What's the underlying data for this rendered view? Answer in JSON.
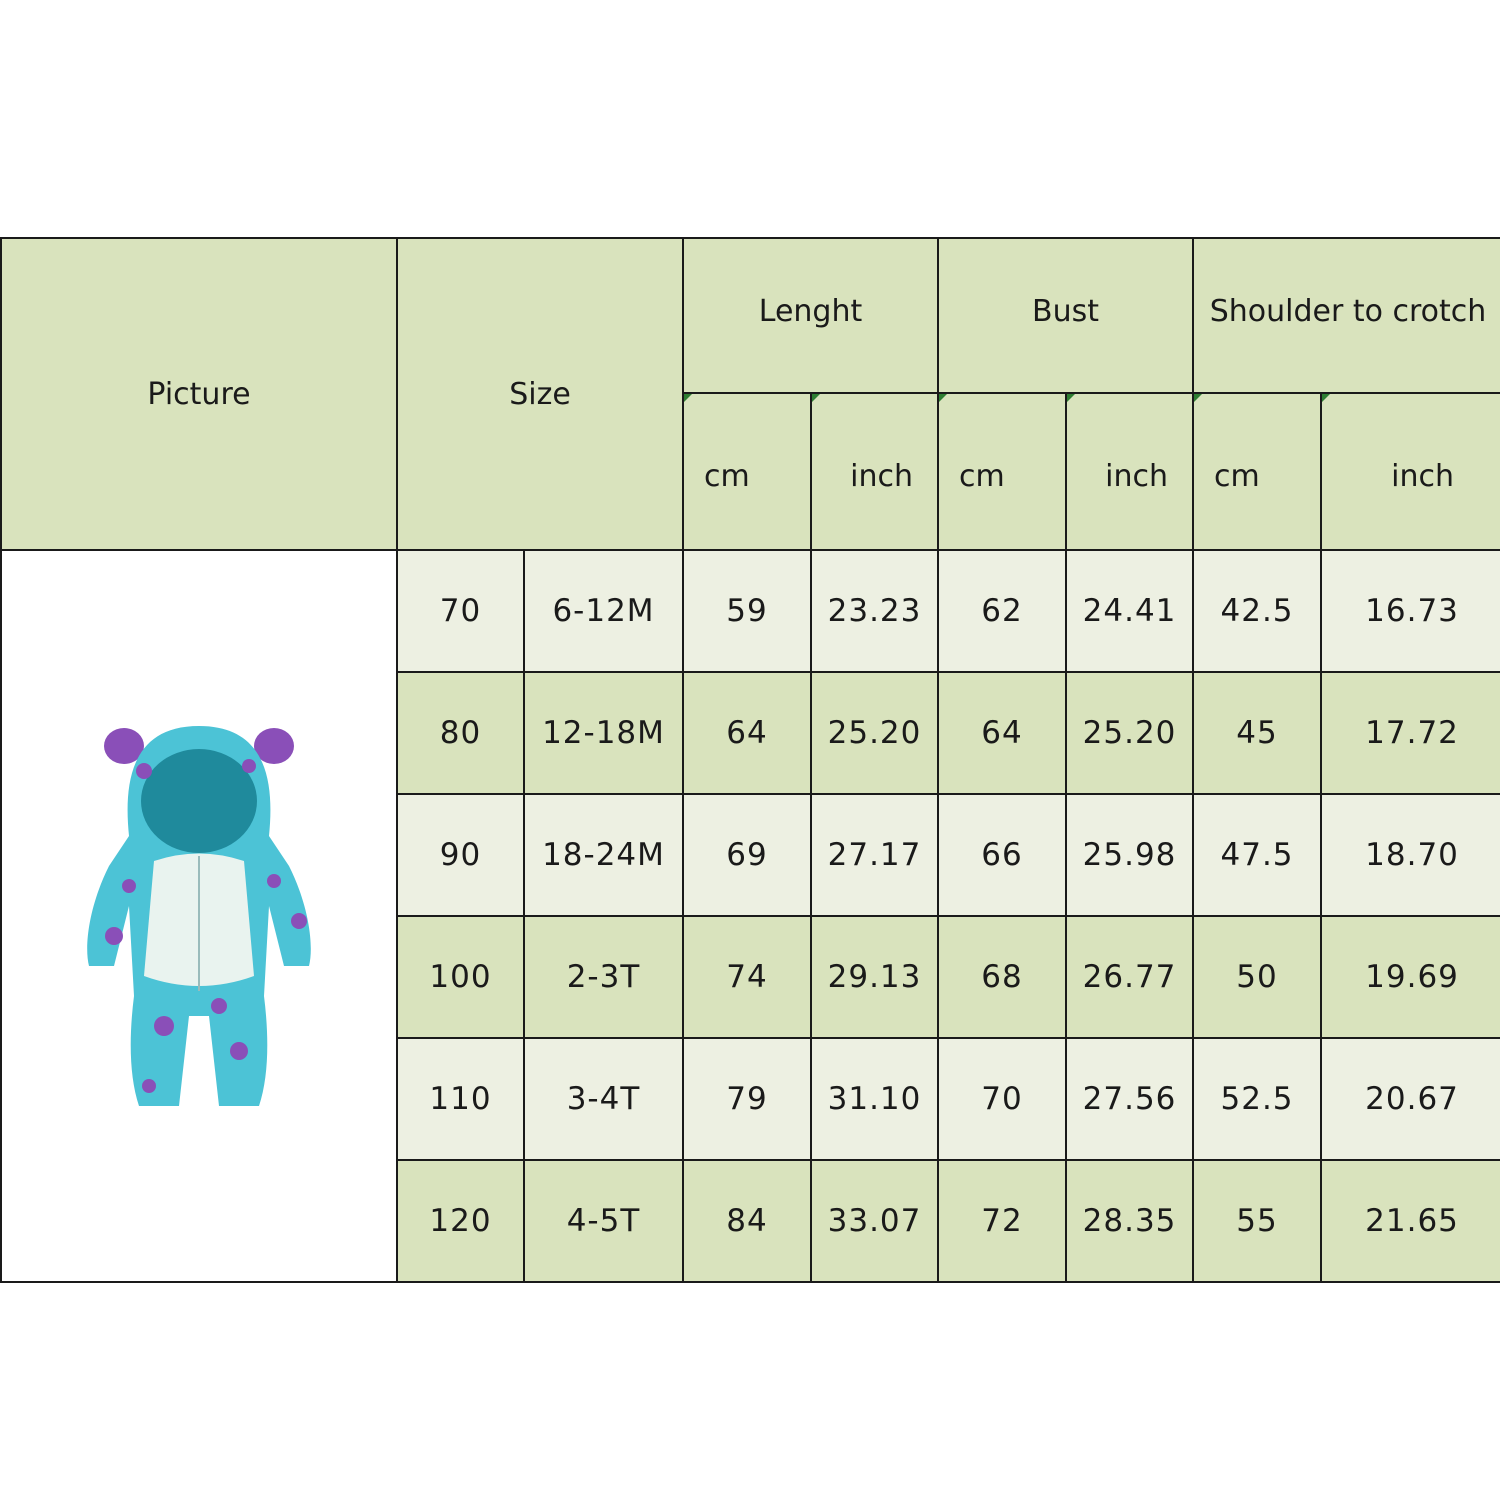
{
  "header": {
    "picture": "Picture",
    "size": "Size",
    "length": "Lenght",
    "bust": "Bust",
    "shoulder_to_crotch": "Shoulder to crotch",
    "units": [
      "cm",
      "inch",
      "cm",
      "inch",
      "cm",
      "inch"
    ]
  },
  "rows": [
    {
      "size": "70",
      "age": "6-12M",
      "length_cm": "59",
      "length_in": "23.23",
      "bust_cm": "62",
      "bust_in": "24.41",
      "stc_cm": "42.5",
      "stc_in": "16.73"
    },
    {
      "size": "80",
      "age": "12-18M",
      "length_cm": "64",
      "length_in": "25.20",
      "bust_cm": "64",
      "bust_in": "25.20",
      "stc_cm": "45",
      "stc_in": "17.72"
    },
    {
      "size": "90",
      "age": "18-24M",
      "length_cm": "69",
      "length_in": "27.17",
      "bust_cm": "66",
      "bust_in": "25.98",
      "stc_cm": "47.5",
      "stc_in": "18.70"
    },
    {
      "size": "100",
      "age": "2-3T",
      "length_cm": "74",
      "length_in": "29.13",
      "bust_cm": "68",
      "bust_in": "26.77",
      "stc_cm": "50",
      "stc_in": "19.69"
    },
    {
      "size": "110",
      "age": "3-4T",
      "length_cm": "79",
      "length_in": "31.10",
      "bust_cm": "70",
      "bust_in": "27.56",
      "stc_cm": "52.5",
      "stc_in": "20.67"
    },
    {
      "size": "120",
      "age": "4-5T",
      "length_cm": "84",
      "length_in": "33.07",
      "bust_cm": "72",
      "bust_in": "28.35",
      "stc_cm": "55",
      "stc_in": "21.65"
    }
  ],
  "colors": {
    "header": "#d9e3bd",
    "row_light": "#edf0e2",
    "row_dark": "#d9e3bd",
    "garment": "#4cc3d6",
    "spots": "#8a4fb8"
  },
  "picture_icon": "monster-hooded-romper"
}
